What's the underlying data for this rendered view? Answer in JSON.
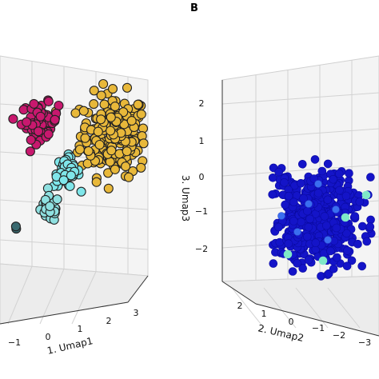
{
  "panel_labels": [
    "B"
  ],
  "chart_data": [
    {
      "type": "scatter",
      "projection": "3d",
      "xlabel": "1. Umap1",
      "ylabel": "",
      "zlabel": "",
      "x_ticks": [
        "−1",
        "0",
        "1",
        "2",
        "3"
      ],
      "grid": true,
      "clusters": [
        {
          "color": "#e8b83a",
          "edge": "#222222",
          "center": [
            1.6,
            1.4
          ],
          "spread": [
            0.9,
            0.8
          ]
        },
        {
          "color": "#c8186e",
          "edge": "#222222",
          "center": [
            -0.6,
            1.7
          ],
          "spread": [
            0.5,
            0.35
          ]
        },
        {
          "color": "#7fe6ea",
          "edge": "#222222",
          "center": [
            0.2,
            0.6
          ],
          "spread": [
            0.35,
            0.3
          ]
        },
        {
          "color": "#8fe0e0",
          "edge": "#222222",
          "center": [
            -0.3,
            -0.2
          ],
          "spread": [
            0.25,
            0.25
          ]
        },
        {
          "color": "#3a6a70",
          "edge": "#222222",
          "center": [
            -1.3,
            -0.6
          ],
          "spread": [
            0.05,
            0.05
          ]
        }
      ]
    },
    {
      "type": "scatter",
      "projection": "3d",
      "xlabel": "2. Umap2",
      "ylabel": "3. Umap3",
      "z_ticks": [
        "2",
        "1",
        "0",
        "−1",
        "−2"
      ],
      "x_ticks": [
        "2",
        "1",
        "0",
        "−1",
        "−2",
        "−3"
      ],
      "grid": true,
      "clusters": [
        {
          "color": "#1414c8",
          "edge": "#0a0aa0",
          "center": [
            0.0,
            0.0
          ],
          "spread": [
            1.4,
            1.2
          ]
        },
        {
          "color": "#7fe8c8",
          "edge": "#7fe8c8",
          "center": [
            -1.8,
            0.0
          ],
          "spread": [
            0.1,
            0.1
          ]
        }
      ]
    }
  ]
}
